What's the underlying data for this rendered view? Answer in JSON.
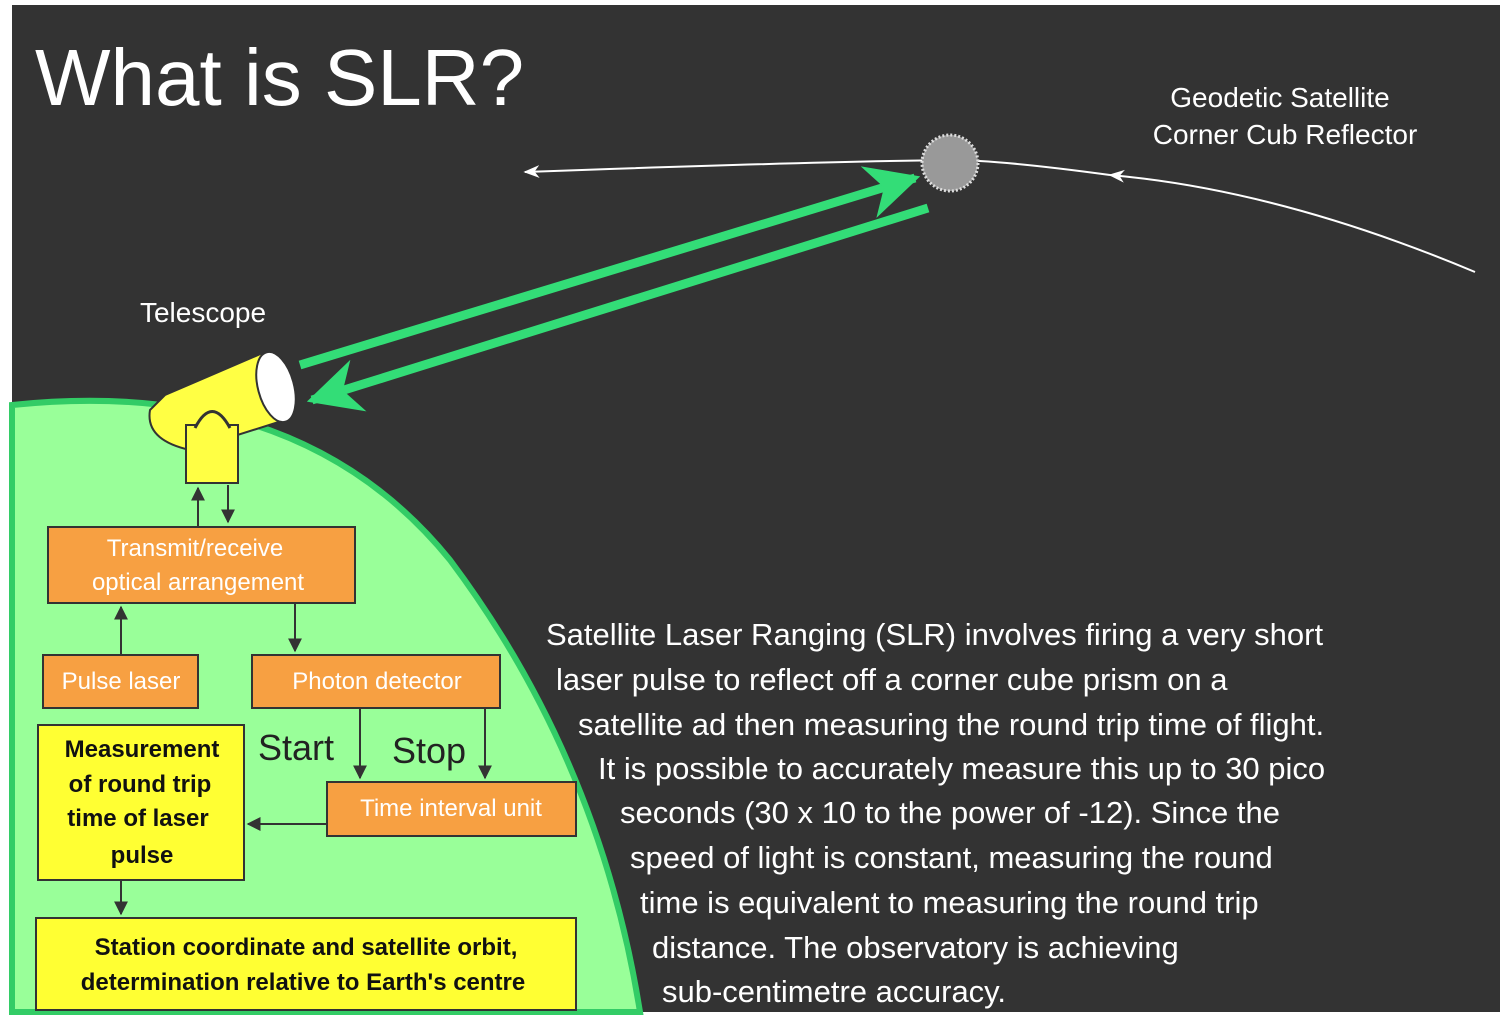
{
  "title": "What is SLR?",
  "satellite_label": [
    "Geodetic Satellite",
    "Corner Cub Reflector"
  ],
  "telescope_label": "Telescope",
  "boxes": [
    {
      "lines": [
        "Transmit/receive",
        "optical arrangement"
      ]
    },
    {
      "lines": [
        "Pulse laser"
      ]
    },
    {
      "lines": [
        "Photon detector"
      ]
    },
    {
      "lines": [
        "Measurement",
        "of round trip",
        "time of laser",
        "pulse"
      ]
    },
    {
      "lines": [
        "Time interval unit"
      ]
    },
    {
      "lines": [
        "Station coordinate and satellite orbit,",
        "determination relative to Earth's centre"
      ]
    }
  ],
  "start_label": "Start",
  "stop_label": "Stop",
  "paragraph": {
    "lines": [
      "Satellite Laser Ranging (SLR) involves firing a very short",
      "laser pulse to reflect off a corner cube prism on a",
      "satellite ad then measuring the round trip time of flight.",
      "It is possible to accurately measure this up to 30 pico",
      "seconds (30 x 10 to the power of -12). Since the",
      "speed of light is constant, measuring the round",
      "time is equivalent to measuring the round trip",
      "distance. The observatory is achieving",
      "sub-centimetre accuracy."
    ]
  }
}
